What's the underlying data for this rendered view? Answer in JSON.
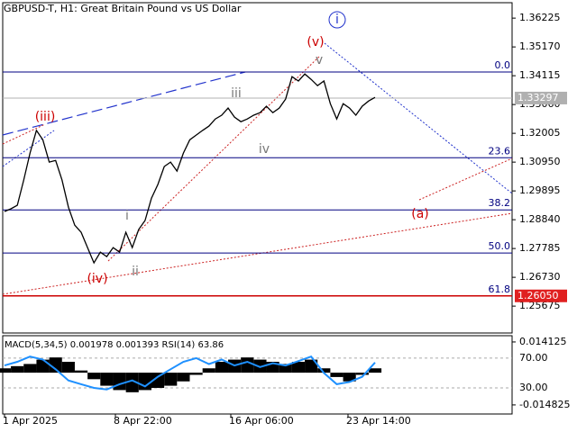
{
  "chart_data": {
    "type": "line",
    "title": "GBPUSD-T, H1:  Great Britain Pound vs US Dollar",
    "ylim": [
      1.2469,
      1.3679
    ],
    "yticks": [
      1.36225,
      {
        "value": 1.3517,
        "label": "1.35170"
      },
      1.34115,
      {
        "value": 1.3306,
        "label": "1.33060"
      },
      1.32005,
      {
        "value": 1.3095,
        "label": "1.30950"
      },
      1.29895,
      {
        "value": 1.2884,
        "label": "1.28840"
      },
      1.27785,
      {
        "value": 1.2673,
        "label": "1.26730"
      },
      1.25675
    ],
    "xticks": [
      "1 Apr 2025",
      "8 Apr 22:00",
      "16 Apr 06:00",
      "23 Apr 14:00"
    ],
    "series": [
      {
        "name": "GBPUSD",
        "color": "#000000",
        "values": [
          1.2914,
          1.2924,
          1.2937,
          1.3029,
          1.3128,
          1.3211,
          1.3177,
          1.3095,
          1.3101,
          1.3029,
          1.293,
          1.2864,
          1.2838,
          1.2782,
          1.2726,
          1.2765,
          1.2749,
          1.2782,
          1.2765,
          1.2838,
          1.2782,
          1.2848,
          1.2881,
          1.2963,
          1.3013,
          1.3079,
          1.3095,
          1.3062,
          1.3128,
          1.3177,
          1.3194,
          1.3211,
          1.3227,
          1.3253,
          1.3267,
          1.3293,
          1.326,
          1.3243,
          1.3253,
          1.3267,
          1.3276,
          1.33,
          1.3276,
          1.3293,
          1.3326,
          1.3408,
          1.3392,
          1.3418,
          1.3398,
          1.3375,
          1.3392,
          1.3309,
          1.3253,
          1.3309,
          1.3293,
          1.3267,
          1.33,
          1.3319,
          1.3332
        ]
      }
    ],
    "current_price": 1.33297,
    "support_price": {
      "value": 1.2605,
      "label": "1.26050"
    },
    "fib_levels": [
      {
        "label": "0.0",
        "price": 1.3425
      },
      {
        "label": "23.6",
        "price": 1.3111
      },
      {
        "label": "38.2",
        "price": 1.292
      },
      {
        "label": "50.0",
        "price": 1.2762
      },
      {
        "label": "61.8",
        "price": 1.2605
      }
    ],
    "annotations": [
      "(iii)",
      "(iv)",
      "(v)",
      "i",
      "iii",
      "iv",
      "v",
      "i",
      "ii",
      "(a)"
    ],
    "indicator": {
      "title": "MACD(5,34,5) 0.001978 0.001393 RSI(14) 63.86",
      "macd_ylim": [
        -0.019,
        0.017
      ],
      "macd_ticks": [
        0.014125,
        -0.014825
      ],
      "rsi_ylim": [
        -5,
        100
      ],
      "rsi_ticks": [
        {
          "value": 70,
          "label": "70.00"
        },
        {
          "value": 30,
          "label": "30.00"
        }
      ],
      "macd": [
        0.002,
        0.003,
        0.004,
        0.006,
        0.007,
        0.005,
        0.001,
        -0.003,
        -0.006,
        -0.008,
        -0.009,
        -0.008,
        -0.007,
        -0.006,
        -0.004,
        -0.001,
        0.002,
        0.005,
        0.006,
        0.007,
        0.006,
        0.005,
        0.004,
        0.005,
        0.006,
        0.002,
        -0.002,
        -0.004,
        -0.001,
        0.002
      ],
      "rsi": [
        60,
        65,
        72,
        68,
        55,
        40,
        35,
        30,
        28,
        35,
        40,
        32,
        45,
        55,
        65,
        70,
        62,
        68,
        60,
        65,
        58,
        63,
        60,
        66,
        72,
        50,
        35,
        38,
        45,
        64
      ],
      "rsi_color": "#1e90ff",
      "macd_color": "#000000"
    }
  }
}
